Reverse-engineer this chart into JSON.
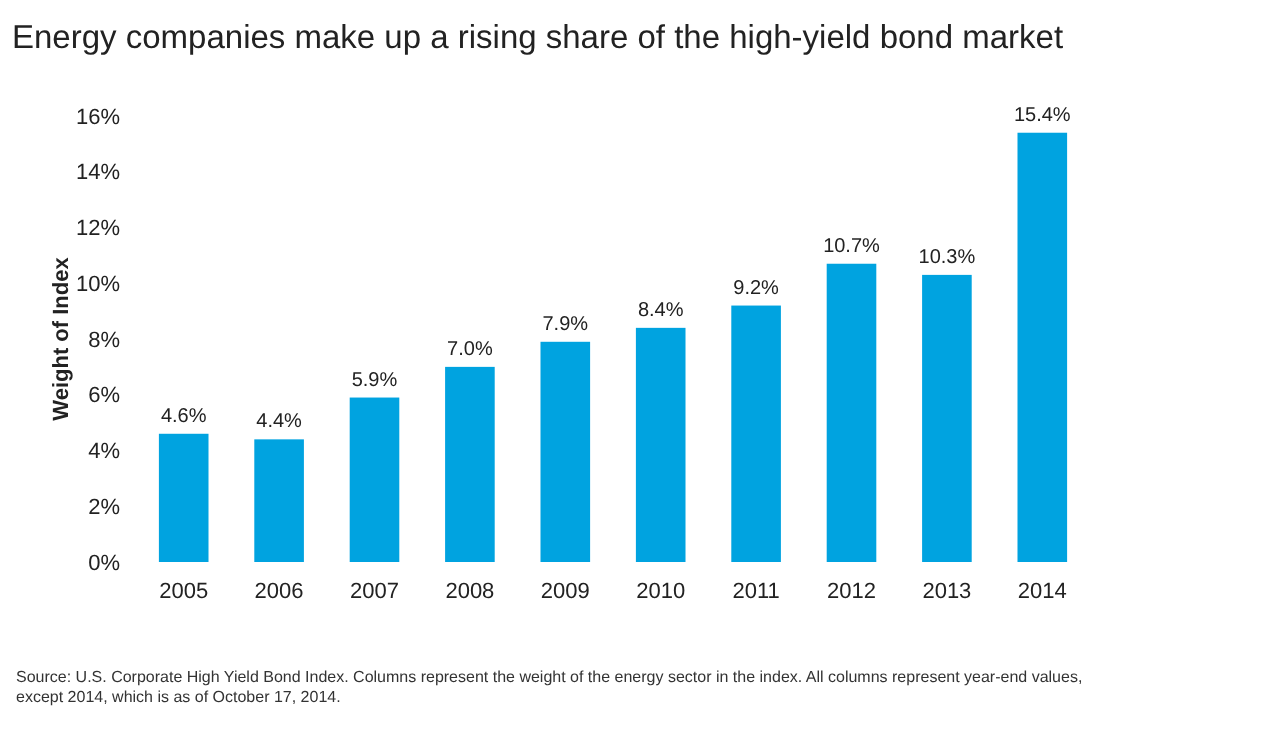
{
  "chart_data": {
    "type": "bar",
    "title": "Energy companies make up a rising share of the high-yield bond market",
    "ylabel": "Weight of Index",
    "categories": [
      "2005",
      "2006",
      "2007",
      "2008",
      "2009",
      "2010",
      "2011",
      "2012",
      "2013",
      "2014"
    ],
    "values": [
      4.6,
      4.4,
      5.9,
      7.0,
      7.9,
      8.4,
      9.2,
      10.7,
      10.3,
      15.4
    ],
    "value_labels": [
      "4.6%",
      "4.4%",
      "5.9%",
      "7.0%",
      "7.9%",
      "8.4%",
      "9.2%",
      "10.7%",
      "10.3%",
      "15.4%"
    ],
    "color": "#00a3e0",
    "ylim": [
      0,
      16
    ],
    "yticks": [
      {
        "value": 0,
        "label": "0%"
      },
      {
        "value": 2,
        "label": "2%"
      },
      {
        "value": 4,
        "label": "4%"
      },
      {
        "value": 6,
        "label": "6%"
      },
      {
        "value": 8,
        "label": "8%"
      },
      {
        "value": 10,
        "label": "10%"
      },
      {
        "value": 12,
        "label": "12%"
      },
      {
        "value": 14,
        "label": "14%"
      },
      {
        "value": 16,
        "label": "16%"
      }
    ],
    "grid": false,
    "annotations": [
      "Source: U.S. Corporate High Yield Bond Index. Columns represent the weight of the energy sector in the index. All columns represent year-end values, except 2014, which is as of October 17, 2014."
    ]
  }
}
